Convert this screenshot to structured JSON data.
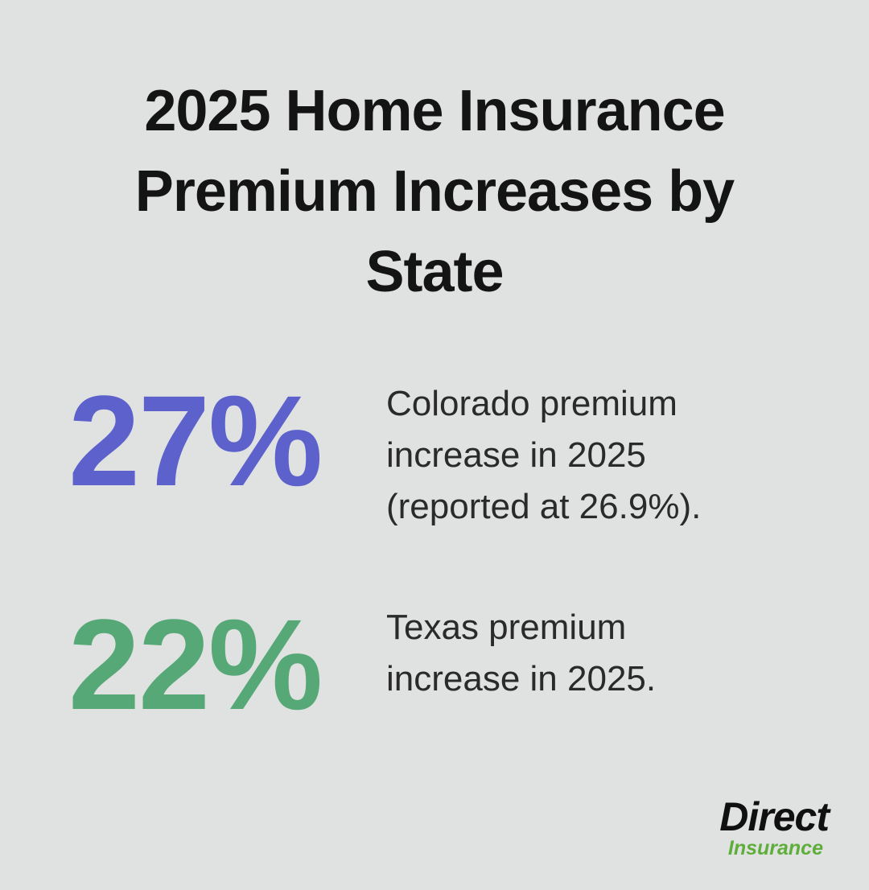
{
  "infographic": {
    "title": "2025 Home Insurance Premium Increases by State"
  },
  "stats": [
    {
      "state": "Colorado",
      "value": "27%",
      "description": "Colorado premium increase in 2025 (reported at 26.9%).",
      "color": "#5c61cb"
    },
    {
      "state": "Texas",
      "value": "22%",
      "description": "Texas premium increase in 2025.",
      "color": "#56a877"
    }
  ],
  "logo": {
    "brand": "Direct",
    "sub": "Insurance",
    "brand_color": "#101010",
    "sub_color": "#5fae3c"
  },
  "colors": {
    "background": "#e0e2e1",
    "title_text": "#141414",
    "body_text": "#2a2a2a"
  },
  "chart_data": {
    "type": "table",
    "title": "2025 Home Insurance Premium Increases by State",
    "categories": [
      "Colorado",
      "Texas"
    ],
    "values": [
      27,
      22
    ],
    "unit": "percent",
    "annotations": [
      "Colorado premium increase in 2025 (reported at 26.9%).",
      "Texas premium increase in 2025."
    ],
    "value_colors": [
      "#5c61cb",
      "#56a877"
    ]
  }
}
